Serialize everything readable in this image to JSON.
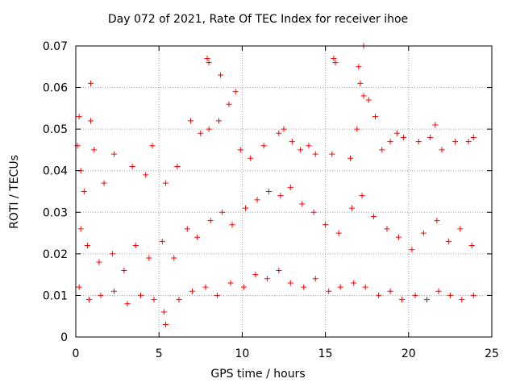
{
  "chart_data": {
    "type": "scatter",
    "title": "Day 072 of 2021, Rate Of TEC Index for receiver ihoe",
    "xlabel": "GPS time / hours",
    "ylabel": "ROTI / TECUs",
    "xlim": [
      0,
      25
    ],
    "ylim": [
      0,
      0.07
    ],
    "xticks": [
      "0",
      "5",
      "10",
      "15",
      "20",
      "25"
    ],
    "yticks": [
      "0",
      "0.01",
      "0.02",
      "0.03",
      "0.04",
      "0.05",
      "0.06",
      "0.07"
    ],
    "grid": true,
    "marker": "+",
    "colors": {
      "points": "#ff0000",
      "grid": "#a0a0a0",
      "axes": "#000000"
    },
    "series": [
      {
        "points": [
          [
            0.1,
            0.046
          ],
          [
            0.2,
            0.053
          ],
          [
            0.3,
            0.04
          ],
          [
            0.5,
            0.035
          ],
          [
            0.9,
            0.061
          ],
          [
            0.9,
            0.052
          ],
          [
            1.1,
            0.045
          ],
          [
            1.7,
            0.037
          ],
          [
            2.3,
            0.044
          ],
          [
            3.4,
            0.041
          ],
          [
            4.2,
            0.039
          ],
          [
            4.6,
            0.046
          ],
          [
            5.4,
            0.037
          ],
          [
            6.1,
            0.041
          ],
          [
            6.9,
            0.052
          ],
          [
            7.5,
            0.049
          ],
          [
            7.9,
            0.067
          ],
          [
            8.0,
            0.066
          ],
          [
            8.0,
            0.05
          ],
          [
            8.7,
            0.063
          ],
          [
            8.6,
            0.052
          ],
          [
            9.2,
            0.056
          ],
          [
            9.6,
            0.059
          ],
          [
            9.9,
            0.045
          ],
          [
            10.5,
            0.043
          ],
          [
            11.3,
            0.046
          ],
          [
            12.2,
            0.049
          ],
          [
            12.5,
            0.05
          ],
          [
            13.0,
            0.047
          ],
          [
            13.5,
            0.045
          ],
          [
            14.0,
            0.046
          ],
          [
            14.4,
            0.044
          ],
          [
            15.4,
            0.044
          ],
          [
            15.5,
            0.067
          ],
          [
            15.6,
            0.066
          ],
          [
            16.5,
            0.043
          ],
          [
            16.9,
            0.05
          ],
          [
            17.0,
            0.065
          ],
          [
            17.1,
            0.061
          ],
          [
            17.3,
            0.07
          ],
          [
            17.3,
            0.058
          ],
          [
            17.6,
            0.057
          ],
          [
            18.0,
            0.053
          ],
          [
            18.4,
            0.045
          ],
          [
            18.9,
            0.047
          ],
          [
            19.3,
            0.049
          ],
          [
            19.7,
            0.048
          ],
          [
            20.6,
            0.047
          ],
          [
            21.3,
            0.048
          ],
          [
            21.6,
            0.051
          ],
          [
            22.0,
            0.045
          ],
          [
            22.8,
            0.047
          ],
          [
            23.6,
            0.047
          ],
          [
            23.9,
            0.048
          ],
          [
            0.3,
            0.026
          ],
          [
            0.7,
            0.022
          ],
          [
            1.4,
            0.018
          ],
          [
            2.2,
            0.02
          ],
          [
            2.9,
            0.016
          ],
          [
            3.6,
            0.022
          ],
          [
            4.4,
            0.019
          ],
          [
            5.2,
            0.023
          ],
          [
            5.9,
            0.019
          ],
          [
            6.7,
            0.026
          ],
          [
            7.3,
            0.024
          ],
          [
            8.1,
            0.028
          ],
          [
            8.8,
            0.03
          ],
          [
            9.4,
            0.027
          ],
          [
            10.2,
            0.031
          ],
          [
            10.9,
            0.033
          ],
          [
            11.6,
            0.035
          ],
          [
            12.3,
            0.034
          ],
          [
            12.9,
            0.036
          ],
          [
            13.6,
            0.032
          ],
          [
            14.3,
            0.03
          ],
          [
            15.0,
            0.027
          ],
          [
            15.8,
            0.025
          ],
          [
            16.6,
            0.031
          ],
          [
            17.2,
            0.034
          ],
          [
            17.9,
            0.029
          ],
          [
            18.7,
            0.026
          ],
          [
            19.4,
            0.024
          ],
          [
            20.2,
            0.021
          ],
          [
            20.9,
            0.025
          ],
          [
            21.7,
            0.028
          ],
          [
            22.4,
            0.023
          ],
          [
            23.1,
            0.026
          ],
          [
            23.8,
            0.022
          ],
          [
            0.2,
            0.012
          ],
          [
            0.8,
            0.009
          ],
          [
            1.5,
            0.01
          ],
          [
            2.3,
            0.011
          ],
          [
            3.1,
            0.008
          ],
          [
            3.9,
            0.01
          ],
          [
            4.7,
            0.009
          ],
          [
            5.3,
            0.006
          ],
          [
            5.4,
            0.003
          ],
          [
            6.2,
            0.009
          ],
          [
            7.0,
            0.011
          ],
          [
            7.8,
            0.012
          ],
          [
            8.5,
            0.01
          ],
          [
            9.3,
            0.013
          ],
          [
            10.1,
            0.012
          ],
          [
            10.8,
            0.015
          ],
          [
            11.5,
            0.014
          ],
          [
            12.2,
            0.016
          ],
          [
            12.9,
            0.013
          ],
          [
            13.7,
            0.012
          ],
          [
            14.4,
            0.014
          ],
          [
            15.2,
            0.011
          ],
          [
            15.9,
            0.012
          ],
          [
            16.7,
            0.013
          ],
          [
            17.4,
            0.012
          ],
          [
            18.2,
            0.01
          ],
          [
            18.9,
            0.011
          ],
          [
            19.6,
            0.009
          ],
          [
            20.4,
            0.01
          ],
          [
            21.1,
            0.009
          ],
          [
            21.8,
            0.011
          ],
          [
            22.5,
            0.01
          ],
          [
            23.2,
            0.009
          ],
          [
            23.9,
            0.01
          ]
        ]
      }
    ]
  }
}
